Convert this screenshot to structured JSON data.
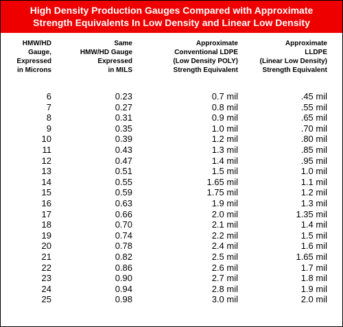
{
  "title": {
    "line1": "High Density Production Gauges Compared with Approximate",
    "line2": "Strength Equivalents In Low Density and Linear Low Density"
  },
  "headers": [
    [
      "HMW/HD",
      "Gauge,",
      "Expressed",
      "in Microns"
    ],
    [
      "Same",
      "HMW/HD Gauge",
      "Expressed",
      "in MILS"
    ],
    [
      "Approximate",
      "Conventional LDPE",
      "(Low Density POLY)",
      "Strength Equivalent"
    ],
    [
      "Approximate",
      "LLDPE",
      "(Linear Low Density)",
      "Strength Equivalent"
    ]
  ],
  "rows": [
    [
      "6",
      "0.23",
      "0.7 mil",
      ".45 mil"
    ],
    [
      "7",
      "0.27",
      "0.8 mil",
      ".55 mil"
    ],
    [
      "8",
      "0.31",
      "0.9 mil",
      ".65 mil"
    ],
    [
      "9",
      "0.35",
      "1.0 mil",
      ".70 mil"
    ],
    [
      "10",
      "0.39",
      "1.2 mil",
      ".80 mil"
    ],
    [
      "11",
      "0.43",
      "1.3 mil",
      ".85 mil"
    ],
    [
      "12",
      "0.47",
      "1.4 mil",
      ".95 mil"
    ],
    [
      "13",
      "0.51",
      "1.5 mil",
      "1.0 mil"
    ],
    [
      "14",
      "0.55",
      "1.65 mil",
      "1.1 mil"
    ],
    [
      "15",
      "0.59",
      "1.75 mil",
      "1.2 mil"
    ],
    [
      "16",
      "0.63",
      "1.9 mil",
      "1.3 mil"
    ],
    [
      "17",
      "0.66",
      "2.0 mil",
      "1.35 mil"
    ],
    [
      "18",
      "0.70",
      "2.1 mil",
      "1.4 mil"
    ],
    [
      "19",
      "0.74",
      "2.2 mil",
      "1.5 mil"
    ],
    [
      "20",
      "0.78",
      "2.4 mil",
      "1.6 mil"
    ],
    [
      "21",
      "0.82",
      "2.5 mil",
      "1.65 mil"
    ],
    [
      "22",
      "0.86",
      "2.6 mil",
      "1.7 mil"
    ],
    [
      "23",
      "0.90",
      "2.7 mil",
      "1.8 mil"
    ],
    [
      "24",
      "0.94",
      "2.8 mil",
      "1.9 mil"
    ],
    [
      "25",
      "0.98",
      "3.0 mil",
      "2.0 mil"
    ]
  ],
  "colors": {
    "banner": "#ee0000",
    "banner_text": "#ffffff",
    "text": "#000000"
  }
}
